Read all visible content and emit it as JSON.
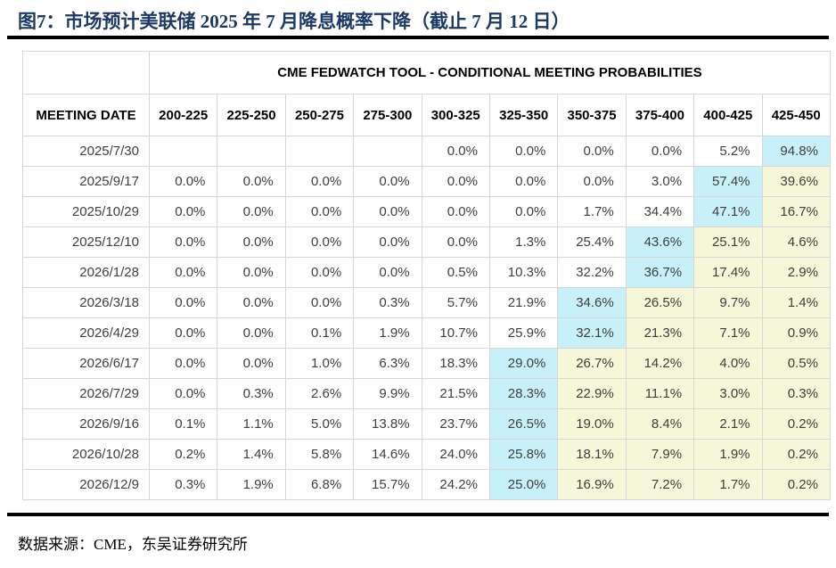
{
  "title": "图7：市场预计美联储 2025 年 7 月降息概率下降（截止 7 月 12 日）",
  "footer": {
    "source": "数据来源：CME，东吴证券研究所"
  },
  "colors": {
    "title_text": "#1b3a66",
    "divider": "#000000",
    "grid_line": "#d7d7d7",
    "cell_text": "#3f3f3f",
    "header_text": "#000000",
    "highlight_cyan": "#c8f0f8",
    "highlight_yellow": "#f6f6d8",
    "background": "#ffffff"
  },
  "chart_data": {
    "type": "table",
    "title": "图7：市场预计美联储 2025 年 7 月降息概率下降（截止 7 月 12 日）",
    "table_header": "CME FEDWATCH TOOL - CONDITIONAL MEETING PROBABILITIES",
    "row_header": "MEETING DATE",
    "columns": [
      "200-225",
      "225-250",
      "250-275",
      "275-300",
      "300-325",
      "325-350",
      "350-375",
      "375-400",
      "400-425",
      "425-450"
    ],
    "rows": [
      {
        "date": "2025/7/30",
        "values": [
          "",
          "",
          "",
          "",
          "0.0%",
          "0.0%",
          "0.0%",
          "0.0%",
          "5.2%",
          "94.8%"
        ],
        "cyan_index": 9,
        "yellow_indices": []
      },
      {
        "date": "2025/9/17",
        "values": [
          "0.0%",
          "0.0%",
          "0.0%",
          "0.0%",
          "0.0%",
          "0.0%",
          "0.0%",
          "3.0%",
          "57.4%",
          "39.6%"
        ],
        "cyan_index": 8,
        "yellow_indices": [
          9
        ]
      },
      {
        "date": "2025/10/29",
        "values": [
          "0.0%",
          "0.0%",
          "0.0%",
          "0.0%",
          "0.0%",
          "0.0%",
          "1.7%",
          "34.4%",
          "47.1%",
          "16.7%"
        ],
        "cyan_index": 8,
        "yellow_indices": [
          9
        ]
      },
      {
        "date": "2025/12/10",
        "values": [
          "0.0%",
          "0.0%",
          "0.0%",
          "0.0%",
          "0.0%",
          "1.3%",
          "25.4%",
          "43.6%",
          "25.1%",
          "4.6%"
        ],
        "cyan_index": 7,
        "yellow_indices": [
          8,
          9
        ]
      },
      {
        "date": "2026/1/28",
        "values": [
          "0.0%",
          "0.0%",
          "0.0%",
          "0.0%",
          "0.5%",
          "10.3%",
          "32.2%",
          "36.7%",
          "17.4%",
          "2.9%"
        ],
        "cyan_index": 7,
        "yellow_indices": [
          8,
          9
        ]
      },
      {
        "date": "2026/3/18",
        "values": [
          "0.0%",
          "0.0%",
          "0.0%",
          "0.3%",
          "5.7%",
          "21.9%",
          "34.6%",
          "26.5%",
          "9.7%",
          "1.4%"
        ],
        "cyan_index": 6,
        "yellow_indices": [
          7,
          8,
          9
        ]
      },
      {
        "date": "2026/4/29",
        "values": [
          "0.0%",
          "0.0%",
          "0.1%",
          "1.9%",
          "10.7%",
          "25.9%",
          "32.1%",
          "21.3%",
          "7.1%",
          "0.9%"
        ],
        "cyan_index": 6,
        "yellow_indices": [
          7,
          8,
          9
        ]
      },
      {
        "date": "2026/6/17",
        "values": [
          "0.0%",
          "0.0%",
          "1.0%",
          "6.3%",
          "18.3%",
          "29.0%",
          "26.7%",
          "14.2%",
          "4.0%",
          "0.5%"
        ],
        "cyan_index": 5,
        "yellow_indices": [
          6,
          7,
          8,
          9
        ]
      },
      {
        "date": "2026/7/29",
        "values": [
          "0.0%",
          "0.3%",
          "2.6%",
          "9.9%",
          "21.5%",
          "28.3%",
          "22.9%",
          "11.1%",
          "3.0%",
          "0.3%"
        ],
        "cyan_index": 5,
        "yellow_indices": [
          6,
          7,
          8,
          9
        ]
      },
      {
        "date": "2026/9/16",
        "values": [
          "0.1%",
          "1.1%",
          "5.0%",
          "13.8%",
          "23.7%",
          "26.5%",
          "19.0%",
          "8.4%",
          "2.1%",
          "0.2%"
        ],
        "cyan_index": 5,
        "yellow_indices": [
          6,
          7,
          8,
          9
        ]
      },
      {
        "date": "2026/10/28",
        "values": [
          "0.2%",
          "1.4%",
          "5.8%",
          "14.6%",
          "24.0%",
          "25.8%",
          "18.1%",
          "7.9%",
          "1.9%",
          "0.2%"
        ],
        "cyan_index": 5,
        "yellow_indices": [
          6,
          7,
          8,
          9
        ]
      },
      {
        "date": "2026/12/9",
        "values": [
          "0.3%",
          "1.9%",
          "6.8%",
          "15.7%",
          "24.2%",
          "25.0%",
          "16.9%",
          "7.2%",
          "1.7%",
          "0.2%"
        ],
        "cyan_index": 5,
        "yellow_indices": [
          6,
          7,
          8,
          9
        ]
      }
    ],
    "source": "数据来源：CME，东吴证券研究所"
  }
}
